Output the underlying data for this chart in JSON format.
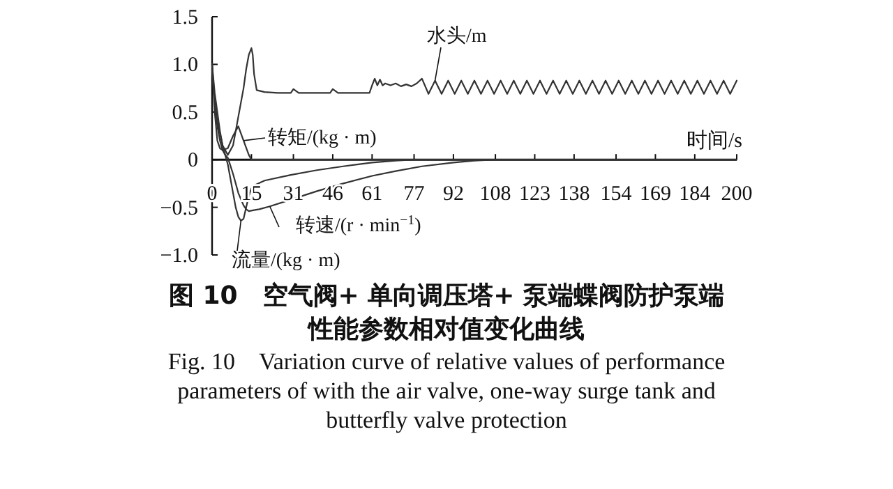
{
  "chart_data": {
    "type": "line",
    "title": "图 10　空气阀+ 单向调压塔+ 泵端蝶阀防护泵端性能参数相对值变化曲线",
    "subtitle": "Fig. 10　Variation curve of relative values of performance parameters of with the air valve, one-way surge tank and butterfly valve protection",
    "xlabel": "时间/s",
    "xlim": [
      0,
      200
    ],
    "ylim": [
      -1.0,
      1.5
    ],
    "xticks": [
      0,
      15,
      31,
      46,
      61,
      77,
      92,
      108,
      123,
      138,
      154,
      169,
      184,
      200
    ],
    "yticks": [
      {
        "value": 1.5,
        "label": "1.5"
      },
      {
        "value": 1,
        "label": "1.0"
      },
      {
        "value": 0.5,
        "label": "0.5"
      },
      0,
      {
        "value": -0.5,
        "label": "−0.5"
      },
      {
        "value": -1,
        "label": "−1.0"
      }
    ],
    "grid": false,
    "legend": false,
    "marker": "none",
    "line_style": "solid",
    "series": [
      {
        "name": "水头/m",
        "color": "#333333",
        "x": [
          0,
          1,
          2,
          4,
          6,
          8,
          10,
          12,
          13,
          14,
          15,
          15.5,
          16,
          17,
          20,
          25,
          30,
          31,
          33,
          40,
          45,
          46,
          48,
          55,
          60,
          61,
          62,
          63,
          64,
          65,
          66,
          68,
          70,
          72,
          74,
          76,
          78,
          80,
          82.5,
          85,
          87.5,
          90,
          92.5,
          95,
          97.5,
          100,
          102.5,
          105,
          107.5,
          110,
          112.5,
          115,
          117.5,
          120,
          122.5,
          125,
          127.5,
          130,
          132.5,
          135,
          137.5,
          140,
          142.5,
          145,
          147.5,
          150,
          152.5,
          155,
          157.5,
          160,
          162.5,
          165,
          167.5,
          170,
          172.5,
          175,
          177.5,
          180,
          182.5,
          185,
          187.5,
          190,
          192.5,
          195,
          197.5,
          200
        ],
        "values": [
          0.95,
          0.6,
          0.4,
          0.15,
          0.05,
          0.15,
          0.45,
          0.75,
          0.95,
          1.1,
          1.17,
          1.1,
          0.9,
          0.73,
          0.71,
          0.7,
          0.7,
          0.74,
          0.7,
          0.7,
          0.7,
          0.74,
          0.7,
          0.7,
          0.7,
          0.78,
          0.85,
          0.78,
          0.84,
          0.78,
          0.8,
          0.78,
          0.8,
          0.77,
          0.79,
          0.77,
          0.8,
          0.85,
          0.69,
          0.83,
          0.69,
          0.83,
          0.69,
          0.83,
          0.69,
          0.83,
          0.69,
          0.83,
          0.69,
          0.83,
          0.69,
          0.83,
          0.69,
          0.83,
          0.69,
          0.83,
          0.69,
          0.83,
          0.69,
          0.83,
          0.69,
          0.83,
          0.69,
          0.83,
          0.69,
          0.83,
          0.69,
          0.83,
          0.69,
          0.83,
          0.69,
          0.83,
          0.69,
          0.83,
          0.69,
          0.83,
          0.69,
          0.83,
          0.69,
          0.83,
          0.69,
          0.83,
          0.69,
          0.83,
          0.69,
          0.83
        ]
      },
      {
        "name": "转矩/(kg · m)",
        "color": "#333333",
        "x": [
          0,
          1,
          2,
          3,
          4,
          6,
          8,
          10,
          12,
          14,
          15,
          200
        ],
        "values": [
          1.0,
          0.5,
          0.2,
          0.12,
          0.1,
          0.12,
          0.25,
          0.35,
          0.2,
          0.05,
          0,
          0
        ]
      },
      {
        "name": "转速/(r · min$^{−1}$)",
        "color": "#333333",
        "x": [
          0,
          1,
          2,
          3,
          4,
          5,
          6,
          8,
          10,
          12,
          13,
          14,
          16,
          18,
          22,
          30,
          40,
          50,
          61,
          70,
          80,
          92,
          100,
          108,
          200
        ],
        "values": [
          1.0,
          0.6,
          0.35,
          0.2,
          0.1,
          0.05,
          0.02,
          -0.15,
          -0.35,
          -0.48,
          -0.52,
          -0.54,
          -0.53,
          -0.52,
          -0.49,
          -0.42,
          -0.33,
          -0.25,
          -0.17,
          -0.12,
          -0.07,
          -0.03,
          -0.01,
          0,
          0
        ]
      },
      {
        "name": "流量/(kg · m)",
        "color": "#333333",
        "x": [
          0,
          1,
          2,
          3,
          4,
          5,
          6,
          7,
          8,
          9,
          10,
          11,
          12,
          13,
          14,
          15,
          16,
          20,
          30,
          40,
          50,
          61,
          70,
          77,
          200
        ],
        "values": [
          1.0,
          0.7,
          0.5,
          0.3,
          0.15,
          0.05,
          -0.05,
          -0.2,
          -0.35,
          -0.5,
          -0.6,
          -0.64,
          -0.62,
          -0.5,
          -0.38,
          -0.3,
          -0.27,
          -0.22,
          -0.16,
          -0.11,
          -0.07,
          -0.03,
          -0.01,
          0,
          0
        ]
      }
    ]
  }
}
